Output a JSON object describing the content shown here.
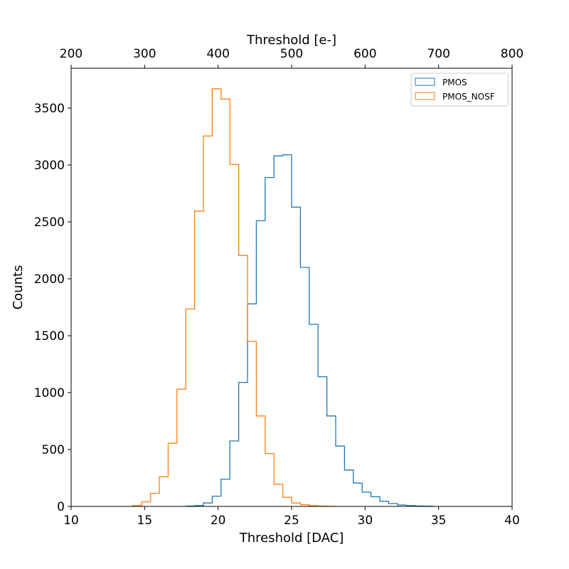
{
  "chart_data": {
    "type": "histogram",
    "title": "",
    "xlabel": "Threshold [DAC]",
    "ylabel": "Counts",
    "top_xlabel": "Threshold [e-]",
    "xlim": [
      10,
      40
    ],
    "ylim": [
      0,
      3850
    ],
    "top_xlim": [
      200,
      800
    ],
    "xticks": [
      10,
      15,
      20,
      25,
      30,
      35,
      40
    ],
    "yticks": [
      0,
      500,
      1000,
      1500,
      2000,
      2500,
      3000,
      3500
    ],
    "top_xticks": [
      200,
      300,
      400,
      500,
      600,
      700,
      800
    ],
    "bin_width": 0.6,
    "legend_position": "upper right",
    "grid": false,
    "series": [
      {
        "name": "PMOS",
        "color": "#1f77b4",
        "bin_edges": [
          17.8,
          18.4,
          19.0,
          19.6,
          20.2,
          20.8,
          21.4,
          22.0,
          22.6,
          23.2,
          23.8,
          24.4,
          25.0,
          25.6,
          26.2,
          26.8,
          27.4,
          28.0,
          28.6,
          29.2,
          29.8,
          30.4,
          31.0,
          31.6,
          32.2,
          32.8,
          33.4,
          34.0,
          34.6
        ],
        "counts": [
          3,
          8,
          30,
          90,
          240,
          575,
          1090,
          1780,
          2510,
          2890,
          3080,
          3090,
          2630,
          2100,
          1600,
          1140,
          795,
          530,
          320,
          205,
          125,
          85,
          45,
          25,
          12,
          8,
          4,
          2
        ]
      },
      {
        "name": "PMOS_NOSF",
        "color": "#ff7f0e",
        "bin_edges": [
          14.2,
          14.8,
          15.4,
          16.0,
          16.6,
          17.2,
          17.8,
          18.4,
          19.0,
          19.6,
          20.2,
          20.8,
          21.4,
          22.0,
          22.6,
          23.2,
          23.8,
          24.4,
          25.0,
          25.6,
          26.2,
          26.8,
          27.4,
          28.0
        ],
        "counts": [
          8,
          40,
          115,
          260,
          555,
          1030,
          1735,
          2595,
          3255,
          3670,
          3580,
          3005,
          2205,
          1450,
          795,
          465,
          195,
          80,
          30,
          15,
          6,
          3,
          1
        ]
      }
    ]
  }
}
